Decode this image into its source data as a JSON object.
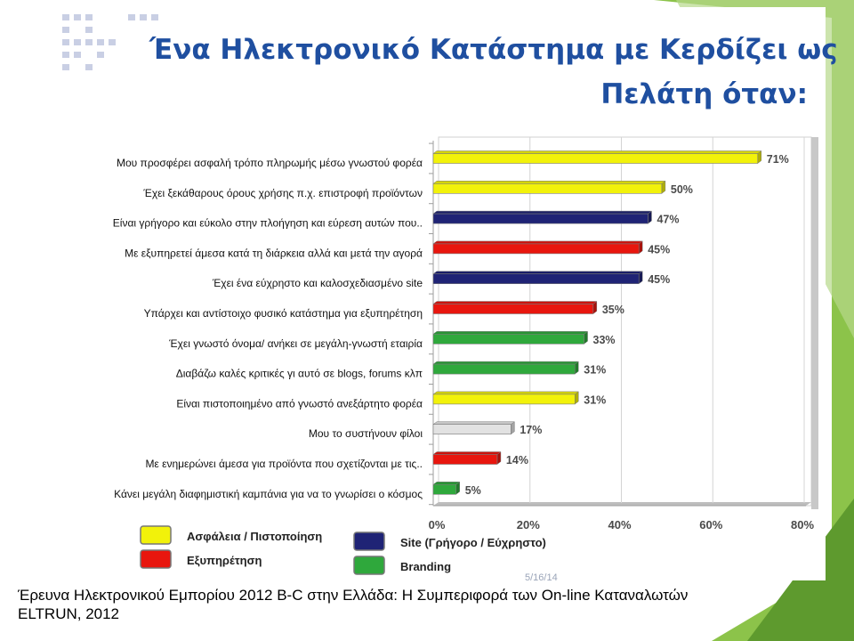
{
  "slide": {
    "title_line1": "Ένα Ηλεκτρονικό Κατάστημα με Κερδίζει ως",
    "title_line2": "Πελάτη όταν:",
    "footer_line1": "Έρευνα Ηλεκτρονικού Εμπορίου 2012 B-C στην Ελλάδα: Η Συμπεριφορά των On-line Καταναλωτών",
    "footer_line2": "ELTRUN, 2012",
    "slide_number": "5/16/14",
    "accent_green": "#7ab648",
    "title_color": "#1f4fa0"
  },
  "chart_data": {
    "type": "bar",
    "orientation": "horizontal",
    "categories": [
      "Μου προσφέρει ασφαλή τρόπο πληρωμής μέσω γνωστού φορέα",
      "Έχει ξεκάθαρους όρους χρήσης π.χ. επιστροφή προϊόντων",
      "Είναι γρήγορο και εύκολο στην πλοήγηση και εύρεση αυτών που..",
      "Με εξυπηρετεί άμεσα κατά τη διάρκεια αλλά και μετά την αγορά",
      "Έχει ένα εύχρηστο και καλοσχεδιασμένο site",
      "Υπάρχει και αντίστοιχο φυσικό κατάστημα για εξυπηρέτηση",
      "Έχει γνωστό όνομα/ ανήκει σε μεγάλη-γνωστή εταιρία",
      "Διαβάζω καλές κριτικές γι αυτό σε blogs, forums κλπ",
      "Είναι πιστοποιημένο από γνωστό ανεξάρτητο φορέα",
      "Μου το συστήνουν φίλοι",
      "Με ενημερώνει άμεσα για προϊόντα που σχετίζονται με τις..",
      "Κάνει μεγάλη διαφημιστική καμπάνια για να το γνωρίσει ο κόσμος"
    ],
    "values": [
      71,
      50,
      47,
      45,
      45,
      35,
      33,
      31,
      31,
      17,
      14,
      5
    ],
    "value_labels": [
      "71%",
      "50%",
      "47%",
      "45%",
      "45%",
      "35%",
      "33%",
      "31%",
      "31%",
      "17%",
      "14%",
      "5%"
    ],
    "groups": [
      "Ασφάλεια",
      "Ασφάλεια",
      "Site",
      "Εξυπηρέτηση",
      "Site",
      "Εξυπηρέτηση",
      "Branding",
      "Branding",
      "Ασφάλεια",
      "Other",
      "Εξυπηρέτηση",
      "Branding"
    ],
    "group_colors": {
      "Ασφάλεια": "#f2f20a",
      "Site": "#1f2375",
      "Εξυπηρέτηση": "#e8160e",
      "Branding": "#2fa83c",
      "Other": "#e2e2e2"
    },
    "xlim": [
      0,
      80
    ],
    "x_ticks": [
      0,
      20,
      40,
      60,
      80
    ],
    "x_tick_labels": [
      "0%",
      "20%",
      "40%",
      "60%",
      "80%"
    ],
    "gridlines": true,
    "legend": [
      {
        "label": "Ασφάλεια / Πιστοποίηση",
        "group": "Ασφάλεια"
      },
      {
        "label": "Site (Γρήγορο / Εύχρηστο)",
        "group": "Site"
      },
      {
        "label": "Εξυπηρέτηση",
        "group": "Εξυπηρέτηση"
      },
      {
        "label": "Branding",
        "group": "Branding"
      }
    ],
    "legend_position": "bottom"
  }
}
